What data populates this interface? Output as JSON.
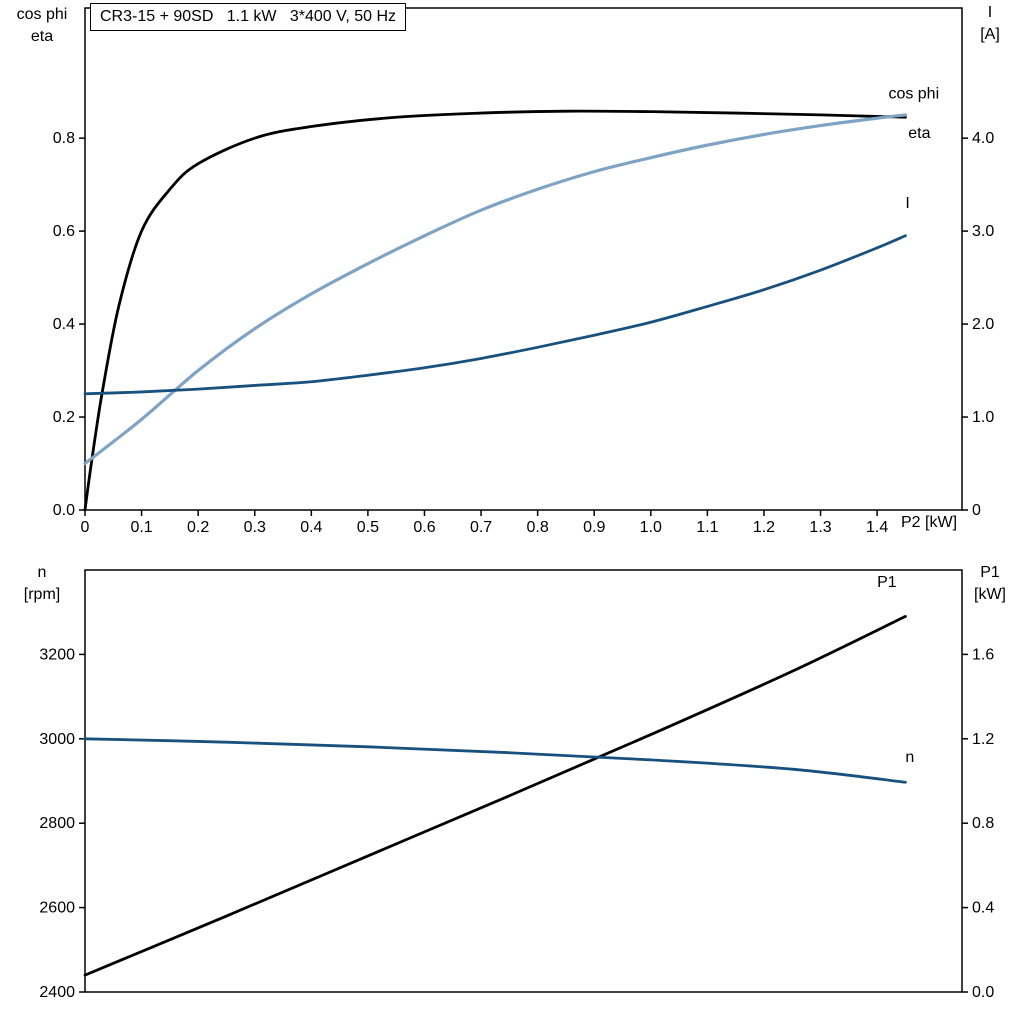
{
  "header": {
    "title": "CR3-15 + 90SD   1.1 kW   3*400 V, 50 Hz"
  },
  "colors": {
    "black": "#000000",
    "light_blue": "#7fa3c4",
    "dark_blue": "#19517e",
    "frame": "#000000",
    "background": "#ffffff"
  },
  "chart_data": [
    {
      "type": "line",
      "title": "CR3-15 + 90SD   1.1 kW   3*400 V, 50 Hz",
      "grid": false,
      "legend": "inline-curve-labels",
      "frame_color": "#000000",
      "x_axis": {
        "label": "P2 [kW]",
        "range": [
          0,
          1.55
        ],
        "ticks": [
          0,
          0.1,
          0.2,
          0.3,
          0.4,
          0.5,
          0.6,
          0.7,
          0.8,
          0.9,
          1.0,
          1.1,
          1.2,
          1.3,
          1.4
        ],
        "tick_labels": [
          "0",
          "0.1",
          "0.2",
          "0.3",
          "0.4",
          "0.5",
          "0.6",
          "0.7",
          "0.8",
          "0.9",
          "1.0",
          "1.1",
          "1.2",
          "1.3",
          "1.4"
        ]
      },
      "left_axis": {
        "title_lines": [
          "cos phi",
          "eta"
        ],
        "range": [
          0,
          1.08
        ],
        "ticks": [
          0,
          0.2,
          0.4,
          0.6,
          0.8
        ],
        "tick_labels": [
          "0.0",
          "0.2",
          "0.4",
          "0.6",
          "0.8"
        ]
      },
      "right_axis": {
        "title_lines": [
          "I",
          "[A]"
        ],
        "range": [
          0,
          5.4
        ],
        "ticks": [
          0,
          1,
          2,
          3,
          4
        ],
        "tick_labels": [
          "0",
          "1.0",
          "2.0",
          "3.0",
          "4.0"
        ]
      },
      "series": [
        {
          "name": "eta",
          "label": "eta",
          "color": "#000000",
          "width": 2.8,
          "axis": "left",
          "label_pos": [
            1.455,
            0.8
          ],
          "x": [
            0,
            0.01,
            0.03,
            0.06,
            0.1,
            0.15,
            0.2,
            0.3,
            0.4,
            0.55,
            0.7,
            0.85,
            1.0,
            1.15,
            1.3,
            1.45
          ],
          "y": [
            0,
            0.09,
            0.25,
            0.44,
            0.6,
            0.69,
            0.745,
            0.8,
            0.825,
            0.845,
            0.854,
            0.858,
            0.857,
            0.854,
            0.85,
            0.845
          ]
        },
        {
          "name": "cos phi",
          "label": "cos phi",
          "color": "#7fa3c4",
          "width": 3.2,
          "axis": "left",
          "label_pos": [
            1.42,
            0.885
          ],
          "x": [
            0,
            0.1,
            0.2,
            0.3,
            0.4,
            0.5,
            0.6,
            0.7,
            0.8,
            0.9,
            1.0,
            1.1,
            1.2,
            1.3,
            1.4,
            1.45
          ],
          "y": [
            0.1,
            0.195,
            0.3,
            0.39,
            0.465,
            0.53,
            0.59,
            0.645,
            0.69,
            0.728,
            0.758,
            0.785,
            0.808,
            0.827,
            0.843,
            0.85
          ]
        },
        {
          "name": "I",
          "label": "I",
          "color": "#19517e",
          "width": 2.8,
          "axis": "right",
          "label_pos": [
            1.45,
            3.25
          ],
          "x": [
            0,
            0.1,
            0.2,
            0.3,
            0.4,
            0.5,
            0.6,
            0.7,
            0.8,
            0.9,
            1.0,
            1.1,
            1.2,
            1.3,
            1.4,
            1.45
          ],
          "y": [
            1.25,
            1.27,
            1.3,
            1.34,
            1.38,
            1.45,
            1.53,
            1.63,
            1.75,
            1.88,
            2.02,
            2.19,
            2.37,
            2.58,
            2.82,
            2.95
          ]
        }
      ]
    },
    {
      "type": "line",
      "title": "",
      "grid": false,
      "legend": "inline-curve-labels",
      "frame_color": "#000000",
      "x_axis": {
        "label": "",
        "range": [
          0,
          1.55
        ],
        "ticks": [],
        "tick_labels": []
      },
      "left_axis": {
        "title_lines": [
          "n",
          "[rpm]"
        ],
        "range": [
          2400,
          3400
        ],
        "ticks": [
          2400,
          2600,
          2800,
          3000,
          3200
        ],
        "tick_labels": [
          "2400",
          "2600",
          "2800",
          "3000",
          "3200"
        ]
      },
      "right_axis": {
        "title_lines": [
          "P1",
          "[kW]"
        ],
        "range": [
          0,
          2.0
        ],
        "ticks": [
          0,
          0.4,
          0.8,
          1.2,
          1.6
        ],
        "tick_labels": [
          "0.0",
          "0.4",
          "0.8",
          "1.2",
          "1.6"
        ]
      },
      "series": [
        {
          "name": "P1",
          "label": "P1",
          "color": "#000000",
          "width": 2.8,
          "axis": "right",
          "label_pos": [
            1.4,
            1.92
          ],
          "x": [
            0,
            0.25,
            0.5,
            0.75,
            1.0,
            1.25,
            1.45
          ],
          "y": [
            0.08,
            0.36,
            0.645,
            0.93,
            1.22,
            1.52,
            1.78
          ]
        },
        {
          "name": "n",
          "label": "n",
          "color": "#19517e",
          "width": 2.8,
          "axis": "left",
          "label_pos": [
            1.45,
            2945
          ],
          "x": [
            0,
            0.25,
            0.5,
            0.75,
            1.0,
            1.25,
            1.45
          ],
          "y": [
            3000,
            2992,
            2981,
            2967,
            2950,
            2928,
            2897
          ]
        }
      ]
    }
  ]
}
